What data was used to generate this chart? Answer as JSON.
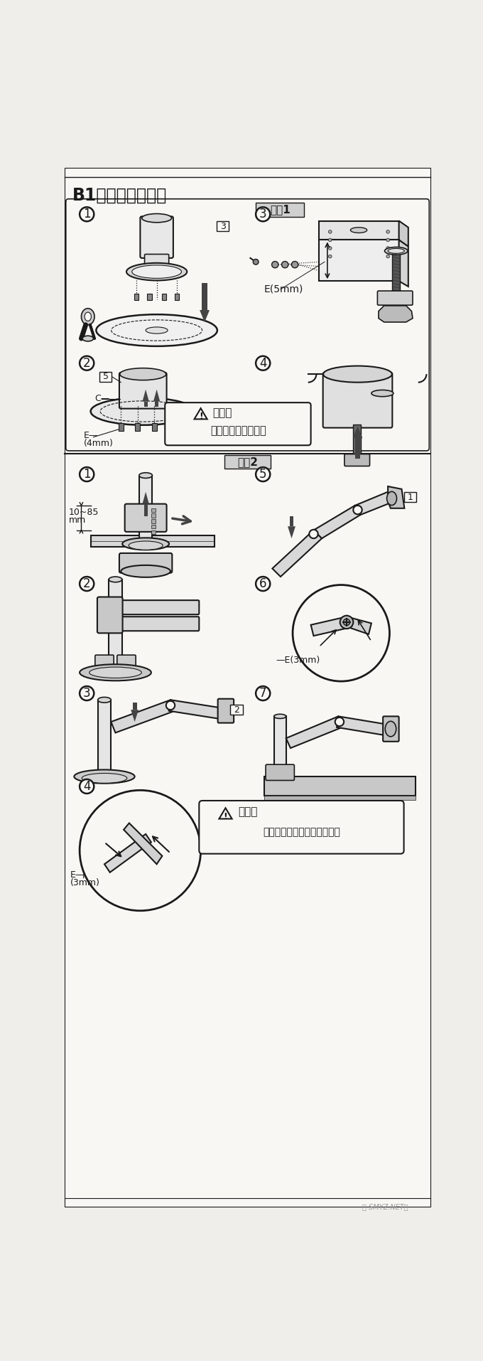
{
  "title": "B1、安装在桌边上",
  "step1_label": "步骤1",
  "step2_label": "步骤2",
  "warning1_title": "警告：",
  "warning1_line1": "一定要把耶丝锁紧。",
  "warning2_title": "警告：",
  "warning2_line1": "旋锁耶丝至手臂表面齐平即可",
  "e5mm": "E(5mm)",
  "e4mm": "E—",
  "e4mm2": "(4mm)",
  "e3mm_1": "—E(3mm)",
  "e3mm_2": "E—",
  "e3mm_2b": "(3mm)",
  "label_c": "C—",
  "label_5": "5",
  "label_3": "3",
  "label_1": "1",
  "label_2": "2",
  "dim_label1": "10~85",
  "dim_label2": "mm",
  "watermark": "値 SMYZ.NET《",
  "bg_color": "#f0eeea",
  "page_bg": "#f8f7f4",
  "line_color": "#1a1a1a",
  "dark_gray": "#444444",
  "mid_gray": "#888888",
  "light_gray": "#cccccc",
  "step_box_bg": "#d0d0d0",
  "figsize": [
    6.8,
    19.14
  ],
  "dpi": 100
}
